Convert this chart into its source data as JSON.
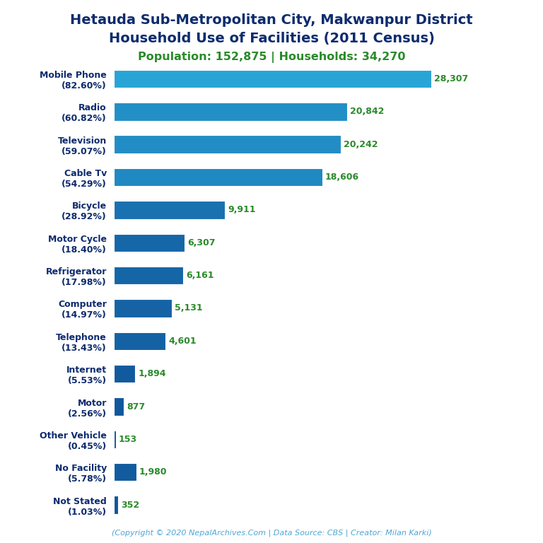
{
  "title_line1": "Hetauda Sub-Metropolitan City, Makwanpur District",
  "title_line2": "Household Use of Facilities (2011 Census)",
  "subtitle": "Population: 152,875 | Households: 34,270",
  "footer": "(Copyright © 2020 NepalArchives.Com | Data Source: CBS | Creator: Milan Karki)",
  "categories": [
    "Mobile Phone\n(82.60%)",
    "Radio\n(60.82%)",
    "Television\n(59.07%)",
    "Cable Tv\n(54.29%)",
    "Bicycle\n(28.92%)",
    "Motor Cycle\n(18.40%)",
    "Refrigerator\n(17.98%)",
    "Computer\n(14.97%)",
    "Telephone\n(13.43%)",
    "Internet\n(5.53%)",
    "Motor\n(2.56%)",
    "Other Vehicle\n(0.45%)",
    "No Facility\n(5.78%)",
    "Not Stated\n(1.03%)"
  ],
  "values": [
    28307,
    20842,
    20242,
    18606,
    9911,
    6307,
    6161,
    5131,
    4601,
    1894,
    877,
    153,
    1980,
    352
  ],
  "bar_color_small": "#1a5f9e",
  "bar_color_large": "#2fa4d6",
  "title_color": "#0d2b6e",
  "subtitle_color": "#2a8a2a",
  "footer_color": "#4da6d6",
  "value_color": "#2a8a2a",
  "label_color": "#0d2b6e",
  "background_color": "#ffffff",
  "xlim": [
    0,
    32000
  ],
  "title_fontsize": 14,
  "subtitle_fontsize": 11.5,
  "label_fontsize": 9,
  "value_fontsize": 9,
  "footer_fontsize": 8,
  "bar_height": 0.55
}
